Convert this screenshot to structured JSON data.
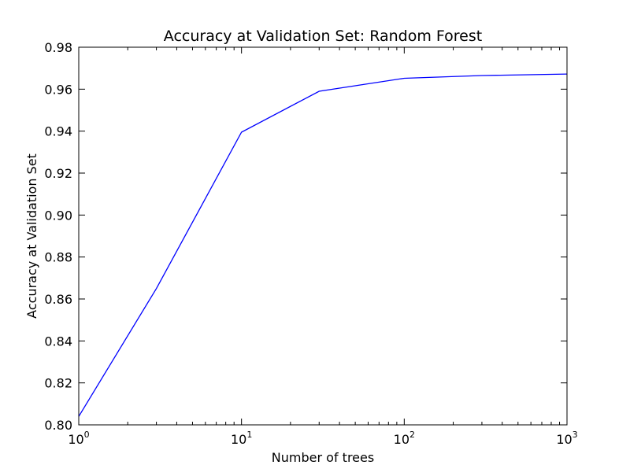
{
  "chart_data": {
    "type": "line",
    "title": "Accuracy at Validation Set: Random Forest",
    "xlabel": "Number of trees",
    "ylabel": "Accuracy at Validation Set",
    "xscale": "log",
    "xlim": [
      1,
      1000
    ],
    "ylim": [
      0.8,
      0.98
    ],
    "grid": false,
    "legend": "none",
    "x_ticks": [
      {
        "value": 1,
        "base": "10",
        "exp": "0"
      },
      {
        "value": 10,
        "base": "10",
        "exp": "1"
      },
      {
        "value": 100,
        "base": "10",
        "exp": "2"
      },
      {
        "value": 1000,
        "base": "10",
        "exp": "3"
      }
    ],
    "y_ticks": [
      0.8,
      0.82,
      0.84,
      0.86,
      0.88,
      0.9,
      0.92,
      0.94,
      0.96,
      0.98
    ],
    "y_tick_labels": [
      "0.80",
      "0.82",
      "0.84",
      "0.86",
      "0.88",
      "0.90",
      "0.92",
      "0.94",
      "0.96",
      "0.98"
    ],
    "series": [
      {
        "color": "#0000ff",
        "x": [
          1,
          3,
          10,
          30,
          100,
          300,
          1000
        ],
        "y": [
          0.804,
          0.865,
          0.9395,
          0.959,
          0.9652,
          0.9665,
          0.9672
        ]
      }
    ]
  }
}
